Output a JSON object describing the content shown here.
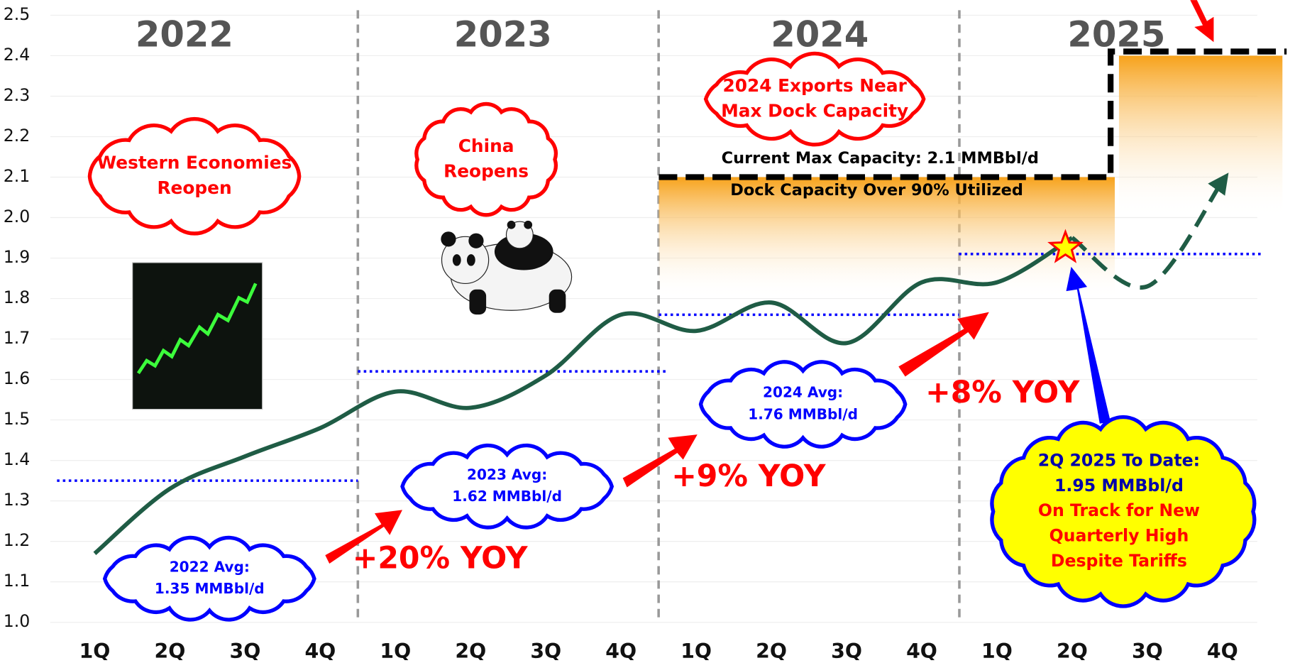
{
  "chart_data": {
    "type": "line",
    "categories": [
      "1Q",
      "2Q",
      "3Q",
      "4Q",
      "1Q",
      "2Q",
      "3Q",
      "4Q",
      "1Q",
      "2Q",
      "3Q",
      "4Q",
      "1Q",
      "2Q",
      "3Q",
      "4Q"
    ],
    "years": [
      "2022",
      "2023",
      "2024",
      "2025"
    ],
    "series": [
      {
        "color": "#1f5c45",
        "values": [
          1.17,
          1.33,
          1.41,
          1.48,
          1.57,
          1.53,
          1.61,
          1.76,
          1.72,
          1.79,
          1.69,
          1.84,
          1.84,
          1.95,
          null,
          null
        ]
      },
      {
        "color": "#1f5c45",
        "dashed": true,
        "values": [
          null,
          null,
          null,
          null,
          null,
          null,
          null,
          null,
          null,
          null,
          null,
          null,
          null,
          1.95,
          1.83,
          2.09
        ]
      }
    ],
    "ylim": [
      1.0,
      2.5
    ],
    "yticks": [
      {
        "value": 1.0,
        "label": "1.0"
      },
      1.1,
      1.2,
      1.3,
      1.4,
      1.5,
      1.6,
      1.7,
      1.8,
      1.9,
      {
        "value": 2.0,
        "label": "2.0"
      },
      2.1,
      2.2,
      2.3,
      2.4,
      2.5
    ],
    "averages": [
      {
        "value": 1.35,
        "label": [
          "2022 Avg:",
          "1.35 MMBbl/d"
        ]
      },
      {
        "value": 1.62,
        "label": [
          "2023 Avg:",
          "1.62 MMBbl/d"
        ]
      },
      {
        "value": 1.76,
        "label": [
          "2024 Avg:",
          "1.76 MMBbl/d"
        ]
      },
      {
        "value": 1.91
      }
    ],
    "growth_labels": [
      "+20% YOY",
      "+9% YOY",
      "+8% YOY"
    ],
    "capacity": {
      "current": 2.1,
      "expanded": 2.4,
      "label": "Current Max Capacity: 2.1 MMBbl/d",
      "utilization_label": "Dock Capacity Over 90% Utilized"
    },
    "callouts": [
      [
        "Western Economies",
        "Reopen"
      ],
      [
        "China",
        "Reopens"
      ],
      [
        "2024 Exports Near",
        "Max Dock Capacity"
      ]
    ],
    "highlight": {
      "lines_blue": [
        "2Q 2025 To Date:",
        "1.95 MMBbl/d"
      ],
      "lines_red": [
        "On Track for New",
        "Quarterly High",
        "Despite Tariffs"
      ]
    }
  }
}
